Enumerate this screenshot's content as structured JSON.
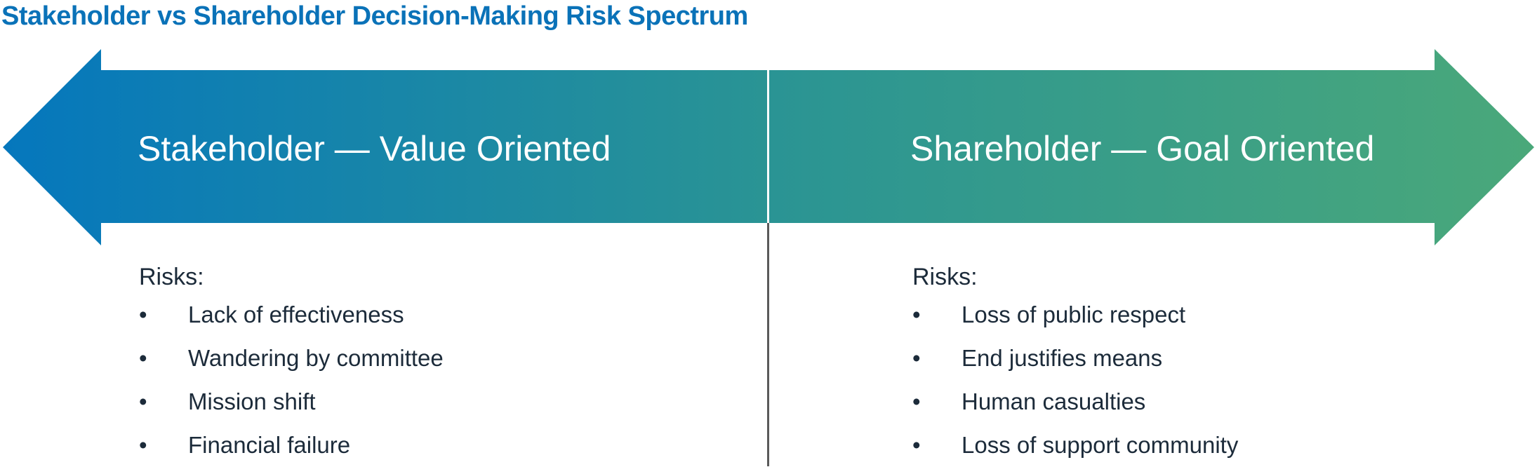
{
  "title": "Stakeholder vs Shareholder Decision-Making Risk Spectrum",
  "colors": {
    "title": "#0a72b8",
    "left": "#0577bd",
    "middle": "#2a9494",
    "right": "#4aa87a",
    "text": "#1c2b3a"
  },
  "left": {
    "heading": "Stakeholder — Value Oriented",
    "risks_label": "Risks:",
    "risks": [
      "Lack of effectiveness",
      "Wandering by committee",
      "Mission shift",
      "Financial failure"
    ]
  },
  "right": {
    "heading": "Shareholder — Goal Oriented",
    "risks_label": "Risks:",
    "risks": [
      "Loss of public respect",
      "End justifies means",
      "Human casualties",
      "Loss of support community"
    ]
  },
  "bullet": "•"
}
